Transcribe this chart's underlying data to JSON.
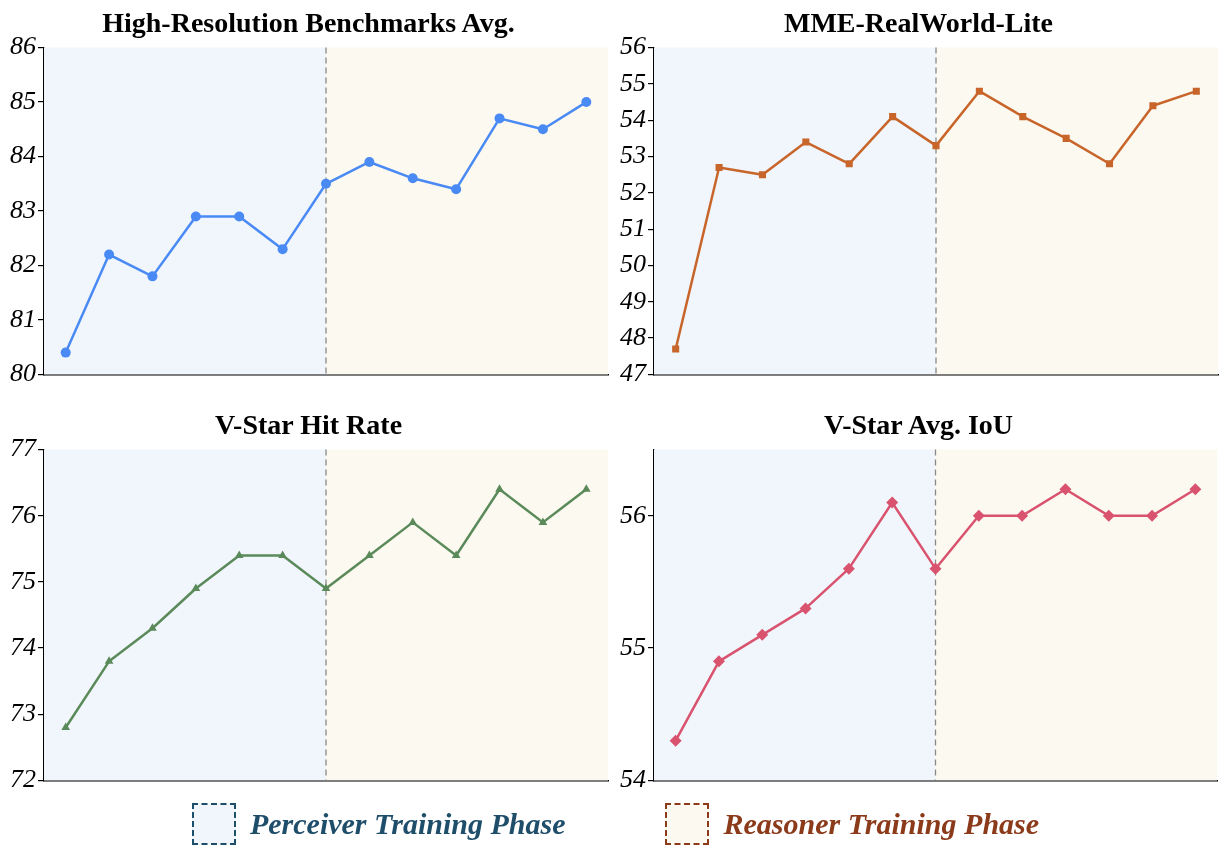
{
  "chart_data": [
    {
      "type": "line",
      "title": "High-Resolution Benchmarks Avg.",
      "categories": [
        null,
        null,
        null,
        null,
        null,
        null,
        null,
        null,
        null,
        null,
        null,
        null,
        null
      ],
      "series": [
        {
          "color": "#4a8af4",
          "values": [
            80.4,
            82.2,
            81.8,
            82.9,
            82.9,
            82.3,
            83.5,
            83.9,
            83.6,
            83.4,
            84.7,
            84.5,
            85.0
          ]
        }
      ],
      "marker": "circle",
      "line_style": "solid",
      "ylim": [
        80,
        86
      ],
      "yticks": [
        80,
        81,
        82,
        83,
        84,
        85,
        86
      ],
      "tick_labels": "y",
      "grid": false,
      "annotations": [
        "Perceiver Training Phase",
        "Reasoner Training Phase"
      ]
    },
    {
      "type": "line",
      "title": "MME-RealWorld-Lite",
      "categories": [
        null,
        null,
        null,
        null,
        null,
        null,
        null,
        null,
        null,
        null,
        null,
        null,
        null
      ],
      "series": [
        {
          "color": "#c8652a",
          "values": [
            47.7,
            52.7,
            52.5,
            53.4,
            52.8,
            54.1,
            53.3,
            54.8,
            54.1,
            53.5,
            52.8,
            54.4,
            54.8
          ]
        }
      ],
      "marker": "square",
      "line_style": "solid",
      "ylim": [
        47,
        56
      ],
      "yticks": [
        47,
        48,
        49,
        50,
        51,
        52,
        53,
        54,
        55,
        56
      ],
      "tick_labels": "y",
      "grid": false
    },
    {
      "type": "line",
      "title": "V-Star Hit Rate",
      "categories": [
        null,
        null,
        null,
        null,
        null,
        null,
        null,
        null,
        null,
        null,
        null,
        null,
        null
      ],
      "series": [
        {
          "color": "#5b8a5a",
          "values": [
            72.8,
            73.8,
            74.3,
            74.9,
            75.4,
            75.4,
            74.9,
            75.4,
            75.9,
            75.4,
            76.4,
            75.9,
            76.4
          ]
        }
      ],
      "marker": "triangle",
      "line_style": "solid",
      "ylim": [
        72,
        77
      ],
      "yticks": [
        72,
        73,
        74,
        75,
        76,
        77
      ],
      "tick_labels": "y",
      "grid": false
    },
    {
      "type": "line",
      "title": "V-Star Avg. IoU",
      "categories": [
        null,
        null,
        null,
        null,
        null,
        null,
        null,
        null,
        null,
        null,
        null,
        null,
        null
      ],
      "series": [
        {
          "color": "#d9536f",
          "values": [
            54.3,
            54.9,
            55.1,
            55.3,
            55.6,
            56.1,
            55.6,
            56.0,
            56.0,
            56.2,
            56.0,
            56.0,
            56.2
          ]
        }
      ],
      "marker": "diamond",
      "line_style": "solid",
      "ylim": [
        54,
        56.5
      ],
      "yticks": [
        54,
        55,
        56
      ],
      "tick_labels": "y",
      "grid": false
    }
  ]
}
